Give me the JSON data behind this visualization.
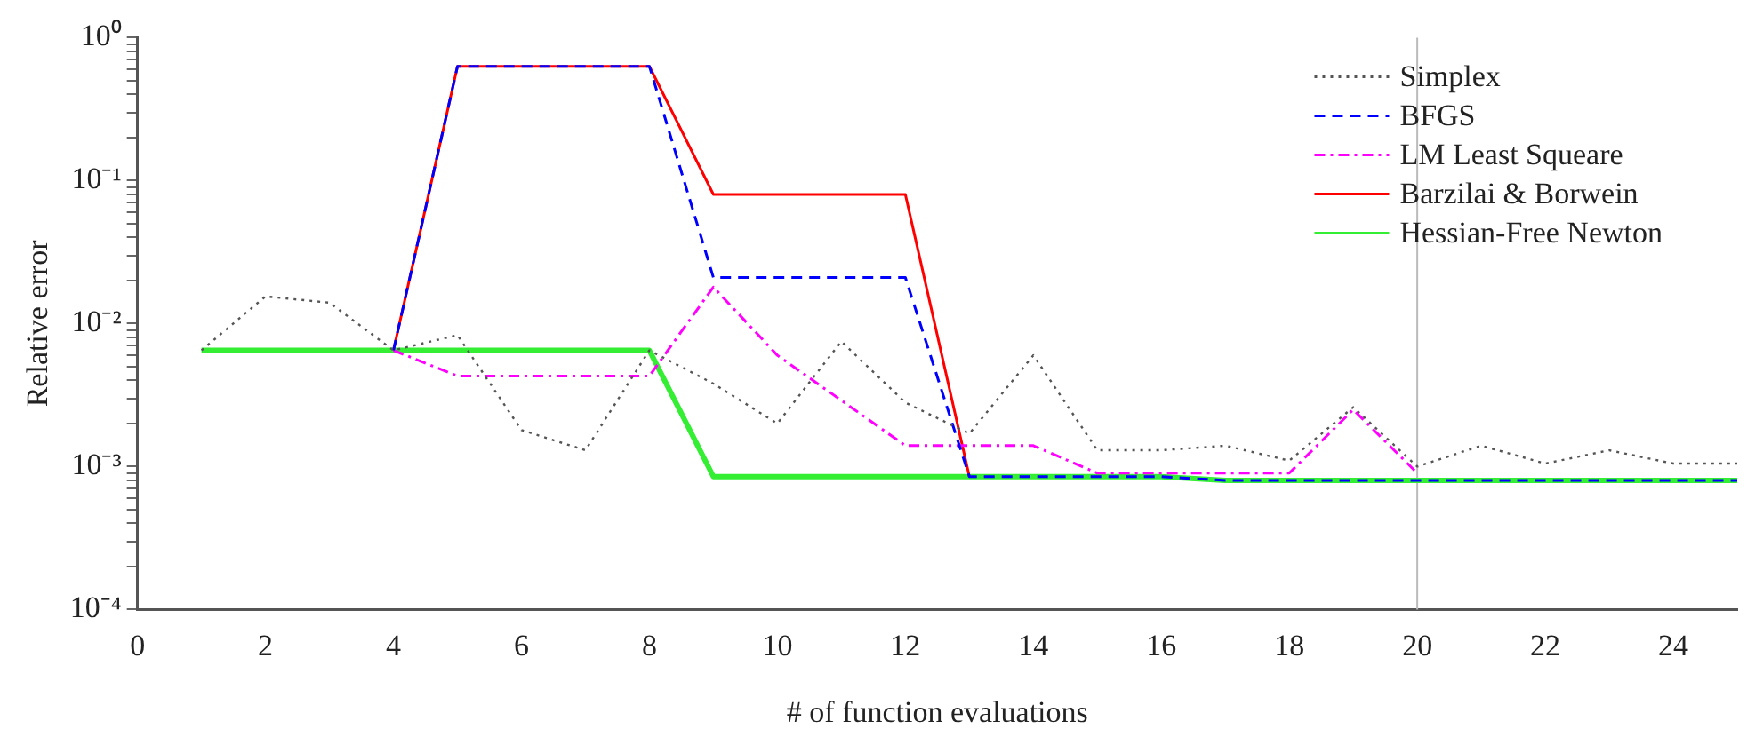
{
  "chart_data": {
    "type": "line",
    "xlabel": "# of function evaluations",
    "ylabel": "Relative error",
    "log": "y",
    "grid": false,
    "legend": "top right",
    "marker": "none",
    "x": [
      1,
      2,
      3,
      4,
      5,
      6,
      7,
      8,
      9,
      10,
      11,
      12,
      13,
      14,
      15,
      16,
      17,
      18,
      19,
      20,
      21,
      22,
      23,
      24,
      25
    ],
    "xlim": [
      0,
      25
    ],
    "xticks": [
      0,
      2,
      4,
      6,
      8,
      10,
      12,
      14,
      16,
      18,
      20,
      22,
      24
    ],
    "ylim": [
      0.0001,
      1
    ],
    "yticks": [
      {
        "value": 0.0001,
        "label": "10⁻⁴"
      },
      {
        "value": 0.0002,
        "label": null
      },
      {
        "value": 0.0003,
        "label": null
      },
      {
        "value": 0.0004,
        "label": null
      },
      {
        "value": 0.0005,
        "label": null
      },
      {
        "value": 0.0006,
        "label": null
      },
      {
        "value": 0.0007,
        "label": null
      },
      {
        "value": 0.0008,
        "label": null
      },
      {
        "value": 0.0009,
        "label": null
      },
      {
        "value": 0.001,
        "label": "10⁻³"
      },
      {
        "value": 0.002,
        "label": null
      },
      {
        "value": 0.003,
        "label": null
      },
      {
        "value": 0.004,
        "label": null
      },
      {
        "value": 0.005,
        "label": null
      },
      {
        "value": 0.006,
        "label": null
      },
      {
        "value": 0.007,
        "label": null
      },
      {
        "value": 0.008,
        "label": null
      },
      {
        "value": 0.009,
        "label": null
      },
      {
        "value": 0.01,
        "label": "10⁻²"
      },
      {
        "value": 0.02,
        "label": null
      },
      {
        "value": 0.03,
        "label": null
      },
      {
        "value": 0.04,
        "label": null
      },
      {
        "value": 0.05,
        "label": null
      },
      {
        "value": 0.06,
        "label": null
      },
      {
        "value": 0.07,
        "label": null
      },
      {
        "value": 0.08,
        "label": null
      },
      {
        "value": 0.09,
        "label": null
      },
      {
        "value": 0.1,
        "label": "10⁻¹"
      },
      {
        "value": 0.2,
        "label": null
      },
      {
        "value": 0.3,
        "label": null
      },
      {
        "value": 0.4,
        "label": null
      },
      {
        "value": 0.5,
        "label": null
      },
      {
        "value": 0.6,
        "label": null
      },
      {
        "value": 0.7,
        "label": null
      },
      {
        "value": 0.8,
        "label": null
      },
      {
        "value": 0.9,
        "label": null
      },
      {
        "value": 1,
        "label": "10⁰"
      }
    ],
    "ref_lines": [
      {
        "axis": "x",
        "value": 20,
        "color": "#bbbbbb"
      }
    ],
    "series": [
      {
        "name": "Simplex",
        "color": "#555555",
        "line_style": "dotted",
        "values": [
          0.0065,
          0.0155,
          0.014,
          0.0065,
          0.0083,
          0.0018,
          0.0013,
          0.0065,
          0.0038,
          0.002,
          0.0075,
          0.0028,
          0.0017,
          0.006,
          0.0013,
          0.0013,
          0.0014,
          0.0011,
          0.0026,
          0.001,
          0.0014,
          0.00105,
          0.0013,
          0.00105,
          0.00105
        ]
      },
      {
        "name": "BFGS",
        "color": "#0000ff",
        "line_style": "dashed",
        "values": [
          null,
          null,
          null,
          0.0065,
          0.63,
          0.63,
          0.63,
          0.63,
          0.021,
          0.021,
          0.021,
          0.021,
          0.00085,
          0.00085,
          0.00085,
          0.00085,
          0.0008,
          0.0008,
          0.0008,
          0.0008,
          0.0008,
          0.0008,
          0.0008,
          0.0008,
          0.0008
        ]
      },
      {
        "name": "LM Least Squeare",
        "color": "#ff00ff",
        "line_style": "dashdot",
        "values": [
          null,
          null,
          null,
          0.0065,
          0.0043,
          0.0043,
          0.0043,
          0.0043,
          0.018,
          0.006,
          0.0029,
          0.0014,
          0.0014,
          0.0014,
          0.0009,
          0.0009,
          0.0009,
          0.0009,
          0.0025,
          0.0009,
          null,
          null,
          null,
          null,
          null
        ]
      },
      {
        "name": "Barzilai & Borwein",
        "color": "#ff0000",
        "line_style": "solid",
        "values": [
          null,
          null,
          null,
          0.0065,
          0.63,
          0.63,
          0.63,
          0.63,
          0.08,
          0.08,
          0.08,
          0.08,
          0.00085,
          null,
          null,
          null,
          null,
          null,
          null,
          null,
          null,
          null,
          null,
          null,
          null
        ]
      },
      {
        "name": "Hessian-Free Newton",
        "color": "#33ee33",
        "line_style": "solid",
        "values": [
          0.0065,
          0.0065,
          0.0065,
          0.0065,
          0.0065,
          0.0065,
          0.0065,
          0.0065,
          0.00085,
          0.00085,
          0.00085,
          0.00085,
          0.00085,
          0.00085,
          0.00085,
          0.00085,
          0.0008,
          0.0008,
          0.0008,
          0.0008,
          0.0008,
          0.0008,
          0.0008,
          0.0008,
          0.0008
        ]
      }
    ]
  }
}
